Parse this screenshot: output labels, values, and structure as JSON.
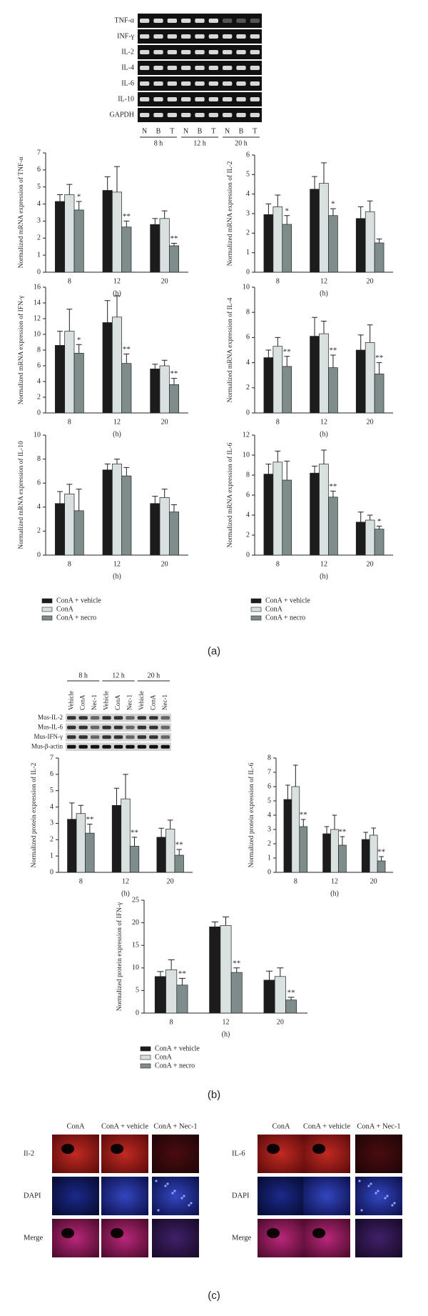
{
  "panel_a": {
    "gel": {
      "rows": [
        "TNF-α",
        "INF-γ",
        "IL-2",
        "IL-4",
        "IL-6",
        "IL-10",
        "GAPDH"
      ],
      "lanes": [
        "N",
        "B",
        "T",
        "N",
        "B",
        "T",
        "N",
        "B",
        "T"
      ],
      "times": [
        "8 h",
        "12 h",
        "20 h"
      ]
    },
    "label": "(a)"
  },
  "chart_data": [
    {
      "type": "bar",
      "ylabel": "Normalized mRNA expression of TNF-α",
      "xlabel": "(h)",
      "categories": [
        "8",
        "12",
        "20"
      ],
      "ylim": [
        0,
        7
      ],
      "yticks": [
        0,
        1,
        2,
        3,
        4,
        5,
        6,
        7
      ],
      "series": [
        {
          "name": "ConA + vehicle",
          "color": "#1c1c1c",
          "values": [
            4.15,
            4.8,
            2.8
          ],
          "errors": [
            0.4,
            0.8,
            0.35
          ]
        },
        {
          "name": "ConA",
          "color": "#d9e0e0",
          "values": [
            4.55,
            4.7,
            3.15
          ],
          "errors": [
            0.6,
            1.5,
            0.45
          ]
        },
        {
          "name": "ConA + necro",
          "color": "#7e8c8c",
          "values": [
            3.65,
            2.65,
            1.55
          ],
          "errors": [
            0.5,
            0.35,
            0.15
          ],
          "sig": [
            "*",
            "**",
            "**"
          ]
        }
      ]
    },
    {
      "type": "bar",
      "ylabel": "Normalized mRNA expression of IL-2",
      "xlabel": "(h)",
      "categories": [
        "8",
        "12",
        "20"
      ],
      "ylim": [
        0,
        6
      ],
      "yticks": [
        0,
        1,
        2,
        3,
        4,
        5,
        6
      ],
      "series": [
        {
          "name": "ConA + vehicle",
          "color": "#1c1c1c",
          "values": [
            2.95,
            4.25,
            2.75
          ],
          "errors": [
            0.55,
            0.65,
            0.6
          ]
        },
        {
          "name": "ConA",
          "color": "#d9e0e0",
          "values": [
            3.35,
            4.55,
            3.1
          ],
          "errors": [
            0.6,
            1.05,
            0.55
          ]
        },
        {
          "name": "ConA + necro",
          "color": "#7e8c8c",
          "values": [
            2.45,
            2.9,
            1.5
          ],
          "errors": [
            0.45,
            0.35,
            0.2
          ],
          "sig": [
            "*",
            "*",
            null
          ]
        }
      ]
    },
    {
      "type": "bar",
      "ylabel": "Normalized mRNA expression of IFN-γ",
      "xlabel": "(h)",
      "categories": [
        "8",
        "12",
        "20"
      ],
      "ylim": [
        0,
        16
      ],
      "yticks": [
        0,
        2,
        4,
        6,
        8,
        10,
        12,
        14,
        16
      ],
      "series": [
        {
          "name": "ConA + vehicle",
          "color": "#1c1c1c",
          "values": [
            8.6,
            11.5,
            5.6
          ],
          "errors": [
            1.8,
            2.8,
            0.6
          ]
        },
        {
          "name": "ConA",
          "color": "#d9e0e0",
          "values": [
            10.4,
            12.2,
            6.0
          ],
          "errors": [
            2.8,
            2.7,
            0.7
          ]
        },
        {
          "name": "ConA + necro",
          "color": "#7e8c8c",
          "values": [
            7.6,
            6.3,
            3.6
          ],
          "errors": [
            1.1,
            1.2,
            0.8
          ],
          "sig": [
            "*",
            "**",
            "**"
          ]
        }
      ]
    },
    {
      "type": "bar",
      "ylabel": "Normalized mRNA expression of IL-4",
      "xlabel": "(h)",
      "categories": [
        "8",
        "12",
        "20"
      ],
      "ylim": [
        0,
        10
      ],
      "yticks": [
        0,
        2,
        4,
        6,
        8,
        10
      ],
      "series": [
        {
          "name": "ConA + vehicle",
          "color": "#1c1c1c",
          "values": [
            4.4,
            6.1,
            5.0
          ],
          "errors": [
            0.6,
            1.5,
            1.2
          ]
        },
        {
          "name": "ConA",
          "color": "#d9e0e0",
          "values": [
            5.3,
            6.3,
            5.6
          ],
          "errors": [
            0.7,
            1.0,
            1.4
          ]
        },
        {
          "name": "ConA + necro",
          "color": "#7e8c8c",
          "values": [
            3.7,
            3.6,
            3.1
          ],
          "errors": [
            0.8,
            1.0,
            0.9
          ],
          "sig": [
            "**",
            "**",
            "**"
          ]
        }
      ]
    },
    {
      "type": "bar",
      "ylabel": "Normalized mRNA expression of IL-10",
      "xlabel": "(h)",
      "categories": [
        "8",
        "12",
        "20"
      ],
      "ylim": [
        0,
        10
      ],
      "yticks": [
        0,
        2,
        4,
        6,
        8,
        10
      ],
      "legend": "below",
      "series": [
        {
          "name": "ConA + vehicle",
          "color": "#1c1c1c",
          "values": [
            4.3,
            7.1,
            4.3
          ],
          "errors": [
            1.0,
            0.5,
            0.6
          ]
        },
        {
          "name": "ConA",
          "color": "#d9e0e0",
          "values": [
            5.1,
            7.6,
            4.8
          ],
          "errors": [
            0.8,
            0.4,
            0.7
          ]
        },
        {
          "name": "ConA + necro",
          "color": "#7e8c8c",
          "values": [
            3.7,
            6.6,
            3.6
          ],
          "errors": [
            1.8,
            0.7,
            0.6
          ]
        }
      ]
    },
    {
      "type": "bar",
      "ylabel": "Normalized mRNA expression of IL-6",
      "xlabel": "(h)",
      "categories": [
        "8",
        "12",
        "20"
      ],
      "ylim": [
        0,
        12
      ],
      "yticks": [
        0,
        2,
        4,
        6,
        8,
        10,
        12
      ],
      "legend": "below",
      "series": [
        {
          "name": "ConA + vehicle",
          "color": "#1c1c1c",
          "values": [
            8.1,
            8.2,
            3.3
          ],
          "errors": [
            1.0,
            0.7,
            1.0
          ]
        },
        {
          "name": "ConA",
          "color": "#d9e0e0",
          "values": [
            9.3,
            9.1,
            3.5
          ],
          "errors": [
            1.1,
            1.4,
            0.5
          ]
        },
        {
          "name": "ConA + necro",
          "color": "#7e8c8c",
          "values": [
            7.5,
            5.8,
            2.6
          ],
          "errors": [
            1.9,
            0.6,
            0.3
          ],
          "sig": [
            null,
            "**",
            "*"
          ]
        }
      ]
    },
    {
      "type": "bar",
      "ylabel": "Normalized protein expression of IL-2",
      "xlabel": "(h)",
      "categories": [
        "8",
        "12",
        "20"
      ],
      "ylim": [
        0,
        7
      ],
      "yticks": [
        0,
        1,
        2,
        3,
        4,
        5,
        6,
        7
      ],
      "series": [
        {
          "name": "ConA + vehicle",
          "color": "#1c1c1c",
          "values": [
            3.25,
            4.1,
            2.15
          ],
          "errors": [
            1.0,
            1.05,
            0.55
          ]
        },
        {
          "name": "ConA",
          "color": "#d9e0e0",
          "values": [
            3.6,
            4.5,
            2.65
          ],
          "errors": [
            0.5,
            1.5,
            0.55
          ]
        },
        {
          "name": "ConA + necro",
          "color": "#7e8c8c",
          "values": [
            2.4,
            1.6,
            1.05
          ],
          "errors": [
            0.55,
            0.55,
            0.35
          ],
          "sig": [
            "**",
            "**",
            "**"
          ]
        }
      ]
    },
    {
      "type": "bar",
      "ylabel": "Normalized protein expression of IL-6",
      "xlabel": "(h)",
      "categories": [
        "8",
        "12",
        "20"
      ],
      "ylim": [
        0,
        8
      ],
      "yticks": [
        0,
        1,
        2,
        3,
        4,
        5,
        6,
        7,
        8
      ],
      "series": [
        {
          "name": "ConA + vehicle",
          "color": "#1c1c1c",
          "values": [
            5.1,
            2.7,
            2.3
          ],
          "errors": [
            1.0,
            0.5,
            0.5
          ]
        },
        {
          "name": "ConA",
          "color": "#d9e0e0",
          "values": [
            6.0,
            3.0,
            2.6
          ],
          "errors": [
            1.5,
            1.0,
            0.5
          ]
        },
        {
          "name": "ConA + necro",
          "color": "#7e8c8c",
          "values": [
            3.2,
            1.9,
            0.8
          ],
          "errors": [
            0.5,
            0.6,
            0.3
          ],
          "sig": [
            "**",
            "**",
            "**"
          ]
        }
      ]
    },
    {
      "type": "bar",
      "ylabel": "Normalized protein expression of IFN-γ",
      "xlabel": "(h)",
      "categories": [
        "8",
        "12",
        "20"
      ],
      "ylim": [
        0,
        25
      ],
      "yticks": [
        0,
        5,
        10,
        15,
        20,
        25
      ],
      "legend": "below",
      "series": [
        {
          "name": "ConA + vehicle",
          "color": "#1c1c1c",
          "values": [
            8.1,
            19.1,
            7.3
          ],
          "errors": [
            1.1,
            1.1,
            2.0
          ]
        },
        {
          "name": "ConA",
          "color": "#d9e0e0",
          "values": [
            9.6,
            19.4,
            8.1
          ],
          "errors": [
            2.2,
            1.9,
            1.9
          ]
        },
        {
          "name": "ConA + necro",
          "color": "#7e8c8c",
          "values": [
            6.2,
            9.0,
            2.9
          ],
          "errors": [
            1.5,
            1.0,
            0.6
          ],
          "sig": [
            "**",
            "**",
            "**"
          ]
        }
      ]
    }
  ],
  "panel_b": {
    "blot": {
      "rows": [
        "Mus-IL-2",
        "Mus-IL-6",
        "Mus-IFN-γ",
        "Mus-β-actin"
      ],
      "lanes": [
        "Vehicle",
        "ConA",
        "Nec-1",
        "Vehicle",
        "ConA",
        "Nec-1",
        "Vehicle",
        "ConA",
        "Nec-1"
      ],
      "times": [
        "8 h",
        "12 h",
        "20 h"
      ]
    },
    "label": "(b)"
  },
  "panel_c": {
    "groups": [
      {
        "columns": [
          "ConA",
          "ConA + vehicle",
          "ConA + Nec-1"
        ],
        "rows": [
          "Il-2",
          "DAPI",
          "Merge"
        ]
      },
      {
        "columns": [
          "ConA",
          "ConA + vehicle",
          "ConA + Nec-1"
        ],
        "rows": [
          "IL-6",
          "DAPI",
          "Merge"
        ]
      }
    ],
    "label": "(c)"
  }
}
